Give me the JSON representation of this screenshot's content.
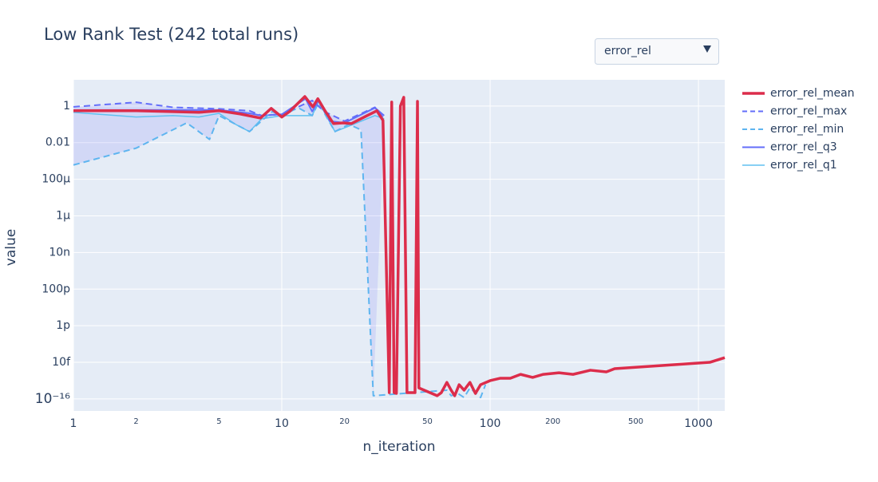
{
  "controls": {
    "dropdown": "error_rel"
  },
  "chart_data": {
    "type": "line",
    "title": "Low Rank Test (242 total runs)",
    "x_label": "n_iteration",
    "y_label": "value",
    "xlog": true,
    "ylog": true,
    "grid": true,
    "legend": "right",
    "xlim": [
      1,
      1337
    ],
    "ylim": [
      2.2e-17,
      27
    ],
    "xticks": [
      1,
      2,
      5,
      10,
      20,
      50,
      100,
      200,
      500,
      1000
    ],
    "yticks": [
      {
        "value": 1e-16,
        "label": "10⁻¹⁶"
      },
      {
        "value": 1e-14,
        "label": "10f"
      },
      {
        "value": 1e-12,
        "label": "1p"
      },
      {
        "value": 1e-10,
        "label": "100p"
      },
      {
        "value": 1e-08,
        "label": "10n"
      },
      {
        "value": 1e-06,
        "label": "1µ"
      },
      {
        "value": 0.0001,
        "label": "100µ"
      },
      0.01,
      1
    ],
    "series": [
      {
        "name": "error_rel_mean",
        "color": "#dc2d4b",
        "dash": false,
        "line_width": 3.5,
        "x": [
          1,
          2,
          4,
          5,
          6.3,
          7.9,
          8.9,
          10,
          10.9,
          12.9,
          14.1,
          14.9,
          16.2,
          17.7,
          19.7,
          21.6,
          25.7,
          28.6,
          30.6,
          32.8,
          33.7,
          34.6,
          35.5,
          37.1,
          38.5,
          39.9,
          43.6,
          44.8,
          45.5,
          55.7,
          58.3,
          62,
          65,
          67.6,
          71,
          75,
          80,
          85,
          90,
          100,
          112,
          125,
          140,
          160,
          180,
          214,
          250,
          303,
          361,
          396,
          1133,
          1337
        ],
        "values": [
          0.55,
          0.55,
          0.45,
          0.55,
          0.37,
          0.22,
          0.74,
          0.25,
          0.5,
          3.3,
          0.9,
          2.5,
          0.5,
          0.11,
          0.12,
          0.11,
          0.3,
          0.55,
          0.165,
          2.2e-16,
          1.65,
          2.2e-16,
          2e-16,
          1.0,
          3.0,
          2.2e-16,
          2.2e-16,
          1.8,
          4e-16,
          1.5e-16,
          2.2e-16,
          8e-16,
          3e-16,
          1.5e-16,
          6e-16,
          3e-16,
          8e-16,
          2e-16,
          6e-16,
          1e-15,
          1.35e-15,
          1.35e-15,
          2.2e-15,
          1.5e-15,
          2.2e-15,
          2.7e-15,
          2.2e-15,
          3.7e-15,
          3e-15,
          4.5e-15,
          1e-14,
          1.8e-14
        ]
      },
      {
        "name": "error_rel_max",
        "color": "#636efa",
        "dash": true,
        "line_width": 2,
        "x": [
          1,
          2,
          3,
          5,
          7,
          8,
          10,
          14,
          16,
          20,
          28,
          31
        ],
        "values": [
          0.9,
          1.6,
          0.85,
          0.7,
          0.55,
          0.3,
          0.35,
          2,
          0.5,
          0.15,
          0.85,
          0.2
        ]
      },
      {
        "name": "error_rel_min",
        "color": "#5eb5f0",
        "dash": true,
        "line_width": 2,
        "x": [
          1,
          2,
          3.5,
          4.5,
          5,
          7,
          9,
          10,
          12,
          14,
          15,
          18,
          21,
          24,
          27.5,
          62,
          65,
          70,
          75,
          80,
          90,
          95
        ],
        "values": [
          0.0006,
          0.005,
          0.12,
          0.015,
          0.3,
          0.04,
          0.5,
          0.3,
          0.8,
          0.3,
          1.5,
          0.04,
          0.1,
          0.05,
          1.5e-16,
          3e-16,
          1.5e-16,
          2e-16,
          1.2e-16,
          4e-16,
          1.2e-16,
          6e-16
        ]
      },
      {
        "name": "error_rel_q3",
        "color": "#636efa",
        "dash": false,
        "line_width": 2,
        "x": [
          1,
          3,
          5,
          7,
          8,
          10,
          13,
          14,
          15,
          17,
          20,
          28,
          31
        ],
        "values": [
          0.6,
          0.6,
          0.6,
          0.4,
          0.3,
          0.35,
          2.5,
          0.5,
          2,
          0.15,
          0.12,
          0.8,
          0.3
        ]
      },
      {
        "name": "error_rel_q1",
        "color": "#60c0f0",
        "dash": false,
        "line_width": 1.5,
        "x": [
          1,
          2,
          3,
          4,
          5,
          6,
          7,
          8,
          10,
          14,
          15,
          18,
          21,
          28,
          31
        ],
        "values": [
          0.45,
          0.25,
          0.3,
          0.25,
          0.4,
          0.1,
          0.04,
          0.2,
          0.3,
          0.3,
          1.8,
          0.04,
          0.08,
          0.3,
          0.2
        ]
      }
    ]
  }
}
